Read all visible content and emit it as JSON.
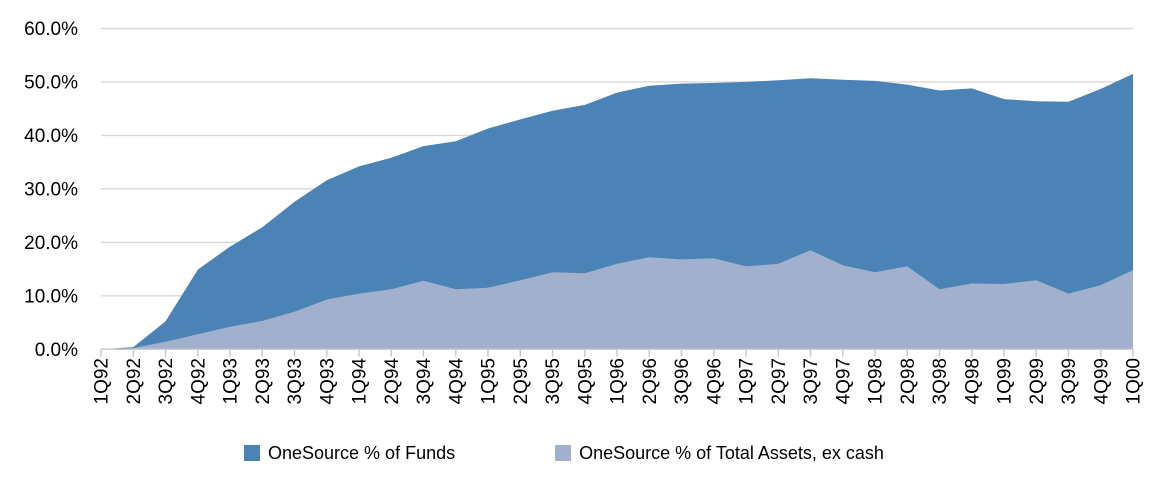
{
  "chart_data": {
    "type": "area",
    "title": "",
    "xlabel": "",
    "ylabel": "",
    "categories": [
      "1Q92",
      "2Q92",
      "3Q92",
      "4Q92",
      "1Q93",
      "2Q93",
      "3Q93",
      "4Q93",
      "1Q94",
      "2Q94",
      "3Q94",
      "4Q94",
      "1Q95",
      "2Q95",
      "3Q95",
      "4Q95",
      "1Q96",
      "2Q96",
      "3Q96",
      "4Q96",
      "1Q97",
      "2Q97",
      "3Q97",
      "4Q97",
      "1Q98",
      "2Q98",
      "3Q98",
      "4Q98",
      "1Q99",
      "2Q99",
      "3Q99",
      "4Q99",
      "1Q00"
    ],
    "series": [
      {
        "name": "OneSource % of Funds",
        "color": "#4c83b6",
        "values": [
          0.0,
          0.4,
          5.2,
          14.9,
          19.2,
          22.8,
          27.6,
          31.6,
          34.2,
          35.8,
          38.0,
          38.9,
          41.3,
          43.0,
          44.6,
          45.7,
          48.0,
          49.3,
          49.7,
          49.8,
          50.0,
          50.3,
          50.7,
          50.4,
          50.2,
          49.5,
          48.4,
          48.8,
          46.8,
          46.4,
          46.3,
          48.7,
          51.5
        ]
      },
      {
        "name": "OneSource % of Total Assets, ex cash",
        "color": "#a0b0cd",
        "values": [
          0.0,
          0.2,
          1.4,
          2.8,
          4.2,
          5.3,
          7.0,
          9.3,
          10.4,
          11.2,
          12.8,
          11.2,
          11.5,
          12.9,
          14.4,
          14.2,
          16.0,
          17.2,
          16.8,
          17.0,
          15.5,
          16.0,
          18.5,
          15.7,
          14.4,
          15.5,
          11.2,
          12.3,
          12.2,
          12.9,
          10.4,
          12.0,
          14.8
        ]
      }
    ],
    "ylim": [
      0,
      60
    ],
    "yticks": [
      0,
      10,
      20,
      30,
      40,
      50,
      60
    ],
    "ytick_labels": [
      "0.0%",
      "10.0%",
      "20.0%",
      "30.0%",
      "40.0%",
      "50.0%",
      "60.0%"
    ],
    "grid": true,
    "x_label_rotation": -90,
    "legend_position": "bottom"
  },
  "colors": {
    "background": "#ffffff",
    "gridline": "#d8d8d8",
    "axis": "#c6c6c6",
    "text": "#000000"
  }
}
